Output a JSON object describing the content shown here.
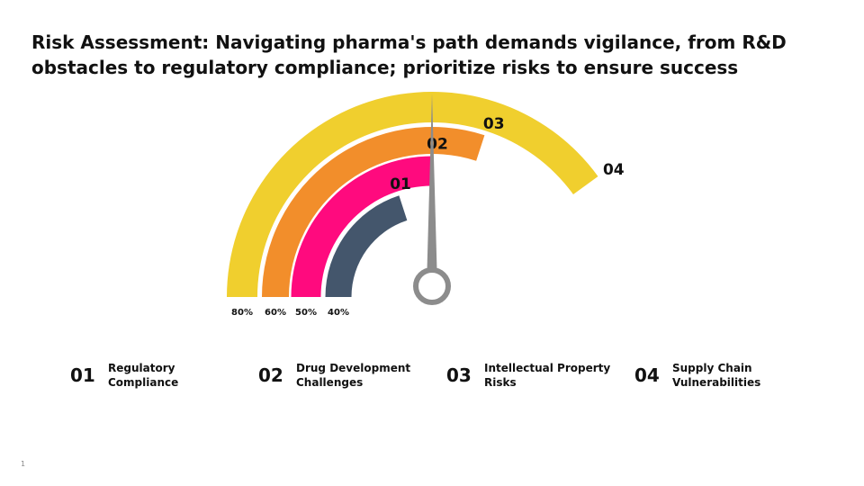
{
  "title": "Risk Assessment: Navigating pharma's path demands vigilance, from R&D obstacles to regulatory compliance; prioritize risks to ensure success",
  "colors": {
    "arc_01": "#44566c",
    "arc_02": "#ff0a7e",
    "arc_03": "#f28e2b",
    "arc_04": "#f0cf2e",
    "needle": "#8c8c8c"
  },
  "chart_data": {
    "type": "gauge",
    "title": "",
    "needle": "02",
    "series": [
      {
        "id": "01",
        "scale_label": "40%",
        "value": 40
      },
      {
        "id": "02",
        "scale_label": "50%",
        "value": 50
      },
      {
        "id": "03",
        "scale_label": "60%",
        "value": 60
      },
      {
        "id": "04",
        "scale_label": "80%",
        "value": 80
      }
    ]
  },
  "legend": [
    {
      "num": "01",
      "label": "Regulatory Compliance"
    },
    {
      "num": "02",
      "label": "Drug Development Challenges"
    },
    {
      "num": "03",
      "label": "Intellectual Property Risks"
    },
    {
      "num": "04",
      "label": "Supply Chain Vulnerabilities"
    }
  ],
  "page_number": "1"
}
